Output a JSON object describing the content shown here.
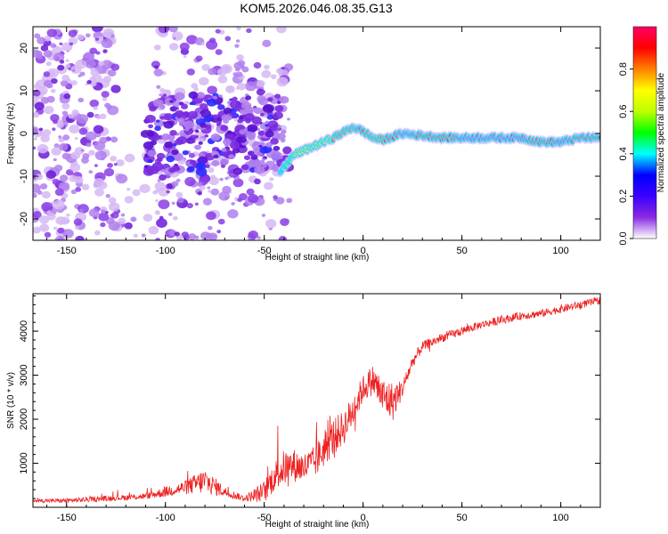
{
  "title": "KOM5.2026.046.08.35.G13",
  "chart_data": [
    {
      "type": "heatmap",
      "title": "KOM5.2026.046.08.35.G13",
      "xlabel": "Height of straight line (km)",
      "ylabel": "Frequency (Hz)",
      "xlim": [
        -167,
        120
      ],
      "ylim": [
        -25,
        25
      ],
      "xticks": [
        -150,
        -100,
        -50,
        0,
        50,
        100
      ],
      "yticks": [
        -20,
        -10,
        0,
        10,
        20
      ],
      "colorbar": {
        "label": "Normalized spectral amplitude",
        "range": [
          0,
          1
        ],
        "ticks": [
          0.0,
          0.2,
          0.4,
          0.6,
          0.8
        ],
        "colormap": [
          "#ffffff",
          "#8a2be2",
          "#0000ff",
          "#00ffff",
          "#00ff00",
          "#ffff00",
          "#ff0000",
          "#ff00ff"
        ]
      },
      "ridge": {
        "description_x": [
          -42,
          -35,
          -25,
          -15,
          -5,
          0,
          5,
          10,
          20,
          30,
          40,
          60,
          80,
          90,
          100,
          110,
          120
        ],
        "frequency_hz": [
          -9,
          -5,
          -3,
          -1,
          1.5,
          0.5,
          -1,
          -1.5,
          0,
          -0.5,
          -1,
          -1,
          -1,
          -2,
          -2,
          -1,
          -1
        ],
        "amplitude": [
          0.35,
          0.55,
          0.6,
          0.7,
          0.8,
          0.85,
          0.7,
          0.8,
          0.95,
          0.9,
          0.9,
          0.95,
          0.95,
          0.85,
          0.95,
          0.9,
          0.9
        ]
      }
    },
    {
      "type": "line",
      "xlabel": "Height of straight line (km)",
      "ylabel": "SNR (10 * v/v)",
      "xlim": [
        -167,
        120
      ],
      "ylim": [
        0,
        4850
      ],
      "xticks": [
        -150,
        -100,
        -50,
        0,
        50,
        100
      ],
      "yticks": [
        1000,
        2000,
        3000,
        4000
      ],
      "color": "#ee2222",
      "series": [
        {
          "x": [
            -167,
            -150,
            -130,
            -110,
            -100,
            -90,
            -80,
            -70,
            -60,
            -50,
            -45,
            -40,
            -35,
            -30,
            -25,
            -20,
            -15,
            -10,
            -5,
            0,
            5,
            10,
            15,
            20,
            25,
            30,
            40,
            50,
            60,
            70,
            80,
            90,
            100,
            110,
            120
          ],
          "values": [
            150,
            150,
            200,
            250,
            350,
            450,
            600,
            350,
            200,
            350,
            700,
            900,
            950,
            900,
            1000,
            1300,
            1600,
            1800,
            2200,
            2700,
            2900,
            2500,
            2400,
            2700,
            3300,
            3650,
            3850,
            4000,
            4150,
            4250,
            4350,
            4400,
            4500,
            4600,
            4700
          ],
          "noise": [
            40,
            50,
            60,
            70,
            120,
            160,
            300,
            120,
            60,
            250,
            350,
            400,
            380,
            350,
            380,
            400,
            420,
            400,
            380,
            300,
            350,
            450,
            450,
            200,
            150,
            120,
            100,
            100,
            90,
            90,
            90,
            90,
            90,
            90,
            90
          ]
        }
      ]
    }
  ]
}
